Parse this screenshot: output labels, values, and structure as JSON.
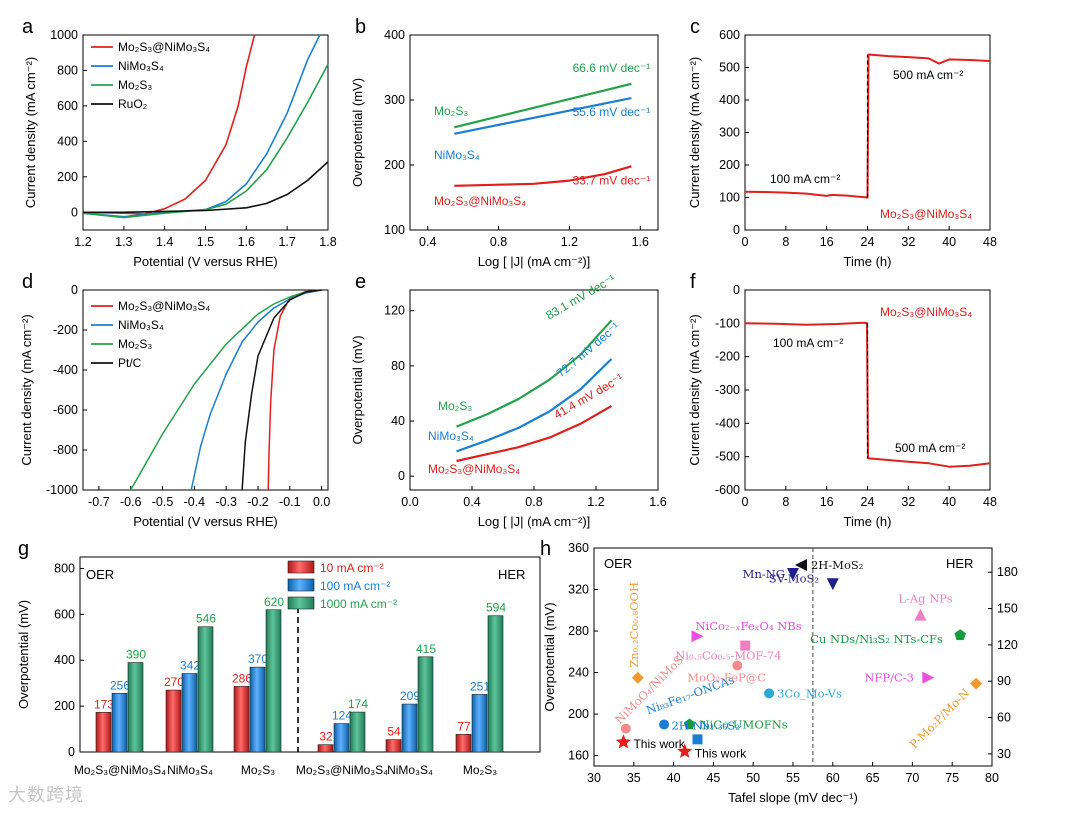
{
  "watermark": "大数跨境",
  "colors": {
    "red": "#e0201d",
    "blue": "#1a7fd4",
    "green": "#22a24a",
    "black": "#111111",
    "navy": "#1f1f8f",
    "pink": "#f07ec0",
    "salmon": "#f48b8b",
    "orange": "#f39a2e",
    "cyan": "#2aa8d9",
    "magenta": "#e94fe0",
    "darkgreen": "#169c3e"
  },
  "chart_data": [
    {
      "panel": "a",
      "type": "line",
      "xlabel": "Potential (V versus RHE)",
      "ylabel": "Current density (mA cm⁻²)",
      "xlim": [
        1.2,
        1.8
      ],
      "ylim": [
        -100,
        1000
      ],
      "xticks": [
        "1.2",
        "1.3",
        "1.4",
        "1.5",
        "1.6",
        "1.7",
        "1.8"
      ],
      "yticks": [
        "0",
        "200",
        "400",
        "600",
        "800",
        "1000"
      ],
      "legend": [
        "Mo₂S₃@NiMo₃S₄",
        "NiMo₃S₄",
        "Mo₂S₃",
        "RuO₂"
      ],
      "series": [
        {
          "name": "Mo₂S₃@NiMo₃S₄",
          "color": "red",
          "x": [
            1.2,
            1.3,
            1.35,
            1.4,
            1.45,
            1.5,
            1.55,
            1.58,
            1.6,
            1.62
          ],
          "y": [
            0,
            -5,
            -10,
            20,
            75,
            180,
            380,
            600,
            820,
            1000
          ]
        },
        {
          "name": "NiMo₃S₄",
          "color": "blue",
          "x": [
            1.2,
            1.3,
            1.4,
            1.5,
            1.55,
            1.6,
            1.65,
            1.7,
            1.75,
            1.78
          ],
          "y": [
            -5,
            -25,
            0,
            15,
            60,
            160,
            330,
            560,
            860,
            1000
          ]
        },
        {
          "name": "Mo₂S₃",
          "color": "green",
          "x": [
            1.2,
            1.3,
            1.4,
            1.5,
            1.55,
            1.6,
            1.65,
            1.7,
            1.75,
            1.8
          ],
          "y": [
            -5,
            -30,
            -5,
            15,
            45,
            120,
            240,
            420,
            620,
            835
          ]
        },
        {
          "name": "RuO₂",
          "color": "black",
          "x": [
            1.2,
            1.3,
            1.4,
            1.5,
            1.6,
            1.65,
            1.7,
            1.75,
            1.8
          ],
          "y": [
            0,
            0,
            5,
            10,
            25,
            50,
            100,
            180,
            285
          ]
        }
      ]
    },
    {
      "panel": "b",
      "type": "line",
      "xlabel": "Log [ |J| (mA cm⁻²)]",
      "ylabel": "Overpotential (mV)",
      "xlim": [
        0.3,
        1.7
      ],
      "ylim": [
        100,
        400
      ],
      "xticks": [
        "0.4",
        "0.8",
        "1.2",
        "1.6"
      ],
      "yticks": [
        "100",
        "200",
        "300",
        "400"
      ],
      "series": [
        {
          "name": "Mo₂S₃",
          "color": "green",
          "label": "66.6 mV dec⁻¹",
          "x": [
            0.55,
            1.55
          ],
          "y": [
            258,
            325
          ]
        },
        {
          "name": "NiMo₃S₄",
          "color": "blue",
          "label": "55.6 mV dec⁻¹",
          "x": [
            0.55,
            1.55
          ],
          "y": [
            248,
            303
          ]
        },
        {
          "name": "Mo₂S₃@NiMo₃S₄",
          "color": "red",
          "label": "33.7 mV dec⁻¹",
          "x": [
            0.55,
            1.0,
            1.2,
            1.4,
            1.55
          ],
          "y": [
            168,
            171,
            176,
            186,
            198
          ]
        }
      ]
    },
    {
      "panel": "c",
      "type": "line",
      "xlabel": "Time (h)",
      "ylabel": "Current density (mA cm⁻²)",
      "xlim": [
        0,
        48
      ],
      "ylim": [
        0,
        600
      ],
      "xticks": [
        "0",
        "8",
        "16",
        "24",
        "32",
        "40",
        "48"
      ],
      "yticks": [
        "0",
        "100",
        "200",
        "300",
        "400",
        "500",
        "600"
      ],
      "annotations": [
        "100 mA cm⁻²",
        "500 mA cm⁻²",
        "Mo₂S₃@NiMo₃S₄"
      ],
      "series": [
        {
          "name": "stability",
          "color": "red",
          "x": [
            0,
            4,
            8,
            12,
            16,
            17,
            20,
            24,
            24.2,
            28,
            32,
            36,
            38,
            40,
            44,
            48
          ],
          "y": [
            118,
            117,
            115,
            112,
            105,
            108,
            106,
            100,
            540,
            535,
            532,
            528,
            512,
            525,
            523,
            520
          ]
        }
      ]
    },
    {
      "panel": "d",
      "type": "line",
      "xlabel": "Potential (V versus RHE)",
      "ylabel": "Current density (mA cm⁻²)",
      "xlim": [
        -0.75,
        0.02
      ],
      "ylim": [
        -1000,
        0
      ],
      "xticks": [
        "-0.7",
        "-0.6",
        "-0.5",
        "-0.4",
        "-0.3",
        "-0.2",
        "-0.1",
        "0.0"
      ],
      "yticks": [
        "0",
        "-200",
        "-400",
        "-600",
        "-800",
        "-1000"
      ],
      "legend": [
        "Mo₂S₃@NiMo₃S₄",
        "NiMo₃S₄",
        "Mo₂S₃",
        "Pt/C"
      ],
      "series": [
        {
          "name": "Mo₂S₃@NiMo₃S₄",
          "color": "red",
          "x": [
            0,
            -0.05,
            -0.1,
            -0.13,
            -0.15,
            -0.16,
            -0.165,
            -0.168
          ],
          "y": [
            0,
            -8,
            -40,
            -130,
            -300,
            -560,
            -800,
            -1000
          ]
        },
        {
          "name": "NiMo₃S₄",
          "color": "blue",
          "x": [
            0,
            -0.05,
            -0.1,
            -0.15,
            -0.2,
            -0.25,
            -0.3,
            -0.35,
            -0.38,
            -0.41
          ],
          "y": [
            0,
            -15,
            -45,
            -90,
            -160,
            -260,
            -420,
            -620,
            -780,
            -1000
          ]
        },
        {
          "name": "Mo₂S₃",
          "color": "green",
          "x": [
            0,
            -0.05,
            -0.1,
            -0.15,
            -0.2,
            -0.3,
            -0.4,
            -0.5,
            -0.6
          ],
          "y": [
            0,
            -10,
            -35,
            -70,
            -120,
            -270,
            -470,
            -720,
            -1000
          ]
        },
        {
          "name": "Pt/C",
          "color": "black",
          "x": [
            0,
            -0.05,
            -0.1,
            -0.15,
            -0.2,
            -0.22,
            -0.24,
            -0.25
          ],
          "y": [
            0,
            -10,
            -50,
            -140,
            -330,
            -520,
            -760,
            -1000
          ]
        }
      ]
    },
    {
      "panel": "e",
      "type": "line",
      "xlabel": "Log [ |J| (mA cm⁻²)]",
      "ylabel": "Overpotential (mV)",
      "xlim": [
        0.0,
        1.6
      ],
      "ylim": [
        -10,
        135
      ],
      "xticks": [
        "0.0",
        "0.4",
        "0.8",
        "1.2",
        "1.6"
      ],
      "yticks": [
        "0",
        "40",
        "80",
        "120"
      ],
      "series": [
        {
          "name": "Mo₂S₃",
          "color": "green",
          "label": "83.1 mV dec⁻¹",
          "x": [
            0.3,
            0.5,
            0.7,
            0.9,
            1.1,
            1.3
          ],
          "y": [
            36,
            45,
            56,
            70,
            88,
            113
          ]
        },
        {
          "name": "NiMo₃S₄",
          "color": "blue",
          "label": "72.7 mV dec⁻¹",
          "x": [
            0.3,
            0.5,
            0.7,
            0.9,
            1.1,
            1.3
          ],
          "y": [
            18,
            26,
            35,
            47,
            63,
            85
          ]
        },
        {
          "name": "Mo₂S₃@NiMo₃S₄",
          "color": "red",
          "label": "41.4 mV dec⁻¹",
          "x": [
            0.3,
            0.5,
            0.7,
            0.9,
            1.1,
            1.3
          ],
          "y": [
            11,
            16,
            21,
            28,
            38,
            51
          ]
        }
      ]
    },
    {
      "panel": "f",
      "type": "line",
      "xlabel": "Time (h)",
      "ylabel": "Current density (mA cm⁻²)",
      "xlim": [
        0,
        48
      ],
      "ylim": [
        -600,
        0
      ],
      "xticks": [
        "0",
        "8",
        "16",
        "24",
        "32",
        "40",
        "48"
      ],
      "yticks": [
        "0",
        "-100",
        "-200",
        "-300",
        "-400",
        "-500",
        "-600"
      ],
      "annotations": [
        "Mo₂S₃@NiMo₃S₄",
        "100 mA cm⁻²",
        "500 mA cm⁻²"
      ],
      "series": [
        {
          "name": "stability",
          "color": "red",
          "x": [
            0,
            6,
            12,
            18,
            23,
            23.9,
            24.1,
            28,
            32,
            36,
            40,
            44,
            48
          ],
          "y": [
            -100,
            -101,
            -104,
            -102,
            -98,
            -99,
            -505,
            -510,
            -515,
            -520,
            -530,
            -527,
            -520
          ]
        }
      ]
    },
    {
      "panel": "g",
      "type": "bar",
      "ylabel": "Overpotential (mV)",
      "ylim": [
        0,
        850
      ],
      "yticks": [
        "0",
        "200",
        "400",
        "600",
        "800"
      ],
      "group_labels": [
        "OER",
        "HER"
      ],
      "categories": [
        "Mo₂S₃@NiMo₃S₄",
        "NiMo₃S₄",
        "Mo₂S₃",
        "Mo₂S₃@NiMo₃S₄",
        "NiMo₃S₄",
        "Mo₂S₃"
      ],
      "series": [
        {
          "name": "10 mA cm⁻²",
          "color": "red",
          "values": [
            173,
            270,
            286,
            32,
            54,
            77
          ]
        },
        {
          "name": "100 mA cm⁻²",
          "color": "blue",
          "values": [
            256,
            342,
            370,
            124,
            209,
            251
          ]
        },
        {
          "name": "1000 mA cm⁻²",
          "color": "green",
          "values": [
            390,
            546,
            620,
            174,
            415,
            594
          ]
        }
      ]
    },
    {
      "panel": "h",
      "type": "scatter",
      "xlabel": "Tafel slope (mV dec⁻¹)",
      "ylabel": "Overpotential (mV)",
      "xlim": [
        30,
        80
      ],
      "ylim_left": [
        150,
        360
      ],
      "ylim_right": [
        20,
        200
      ],
      "xticks": [
        "30",
        "35",
        "40",
        "45",
        "50",
        "55",
        "60",
        "65",
        "70",
        "75",
        "80"
      ],
      "yticks_left": [
        "160",
        "200",
        "240",
        "280",
        "320",
        "360"
      ],
      "yticks_right": [
        "30",
        "60",
        "90",
        "120",
        "150",
        "180"
      ],
      "group_labels": [
        "OER",
        "HER"
      ],
      "points": [
        {
          "label": "Mn-NG",
          "x": 55,
          "y": 335,
          "axis": "left",
          "color": "navy",
          "marker": "triangle-down"
        },
        {
          "label": "Zn₀.₂Co₀.₈OOH",
          "x": 35.5,
          "y": 235,
          "axis": "left",
          "color": "orange",
          "marker": "diamond"
        },
        {
          "label": "NiCo₂₋ₓFeₓO₄ NBs",
          "x": 43,
          "y": 275,
          "axis": "left",
          "color": "magenta",
          "marker": "triangle-right"
        },
        {
          "label": "Ni₀.₅Co₀.₅-MOF-74",
          "x": 49,
          "y": 266,
          "axis": "left",
          "color": "pink",
          "marker": "square"
        },
        {
          "label": "NiMoO₄/NiMoS",
          "x": 34,
          "y": 186,
          "axis": "left",
          "color": "salmon",
          "marker": "circle"
        },
        {
          "label": "Ni₈₃Fe₁₇-ONCAs",
          "x": 38.8,
          "y": 190,
          "axis": "left",
          "color": "blue",
          "marker": "circle"
        },
        {
          "label": "NiCo-UMOFNs",
          "x": 42,
          "y": 190,
          "axis": "left",
          "color": "darkgreen",
          "marker": "pentagon"
        },
        {
          "label": "This work",
          "x": 33.7,
          "y": 173,
          "axis": "left",
          "color": "red",
          "marker": "star"
        },
        {
          "label": "2H-MoS₂",
          "x": 56,
          "y": 186,
          "axis": "right",
          "color": "black",
          "marker": "triangle-left"
        },
        {
          "label": "SV-MoS₂",
          "x": 60,
          "y": 170,
          "axis": "right",
          "color": "navy",
          "marker": "triangle-down"
        },
        {
          "label": "L-Ag NPs",
          "x": 71,
          "y": 145,
          "axis": "right",
          "color": "pink",
          "marker": "triangle-up"
        },
        {
          "label": "Cu NDs/Ni₃S₂ NTs-CFs",
          "x": 76,
          "y": 128,
          "axis": "right",
          "color": "darkgreen",
          "marker": "pentagon"
        },
        {
          "label": "MoO₂-FeP@C",
          "x": 48,
          "y": 103,
          "axis": "right",
          "color": "salmon",
          "marker": "circle"
        },
        {
          "label": "NFP/C-3",
          "x": 72,
          "y": 93,
          "axis": "right",
          "color": "magenta",
          "marker": "triangle-right"
        },
        {
          "label": "3Co_Mo-Vs",
          "x": 52,
          "y": 80,
          "axis": "right",
          "color": "cyan",
          "marker": "circle"
        },
        {
          "label": "P-Mo₂P/Mo-N",
          "x": 78,
          "y": 88,
          "axis": "right",
          "color": "orange",
          "marker": "diamond"
        },
        {
          "label": "2H Nb₁.₃₅S₂",
          "x": 43,
          "y": 42,
          "axis": "right",
          "color": "blue",
          "marker": "square"
        },
        {
          "label": "This work",
          "x": 41.4,
          "y": 32,
          "axis": "right",
          "color": "red",
          "marker": "star"
        }
      ]
    }
  ]
}
